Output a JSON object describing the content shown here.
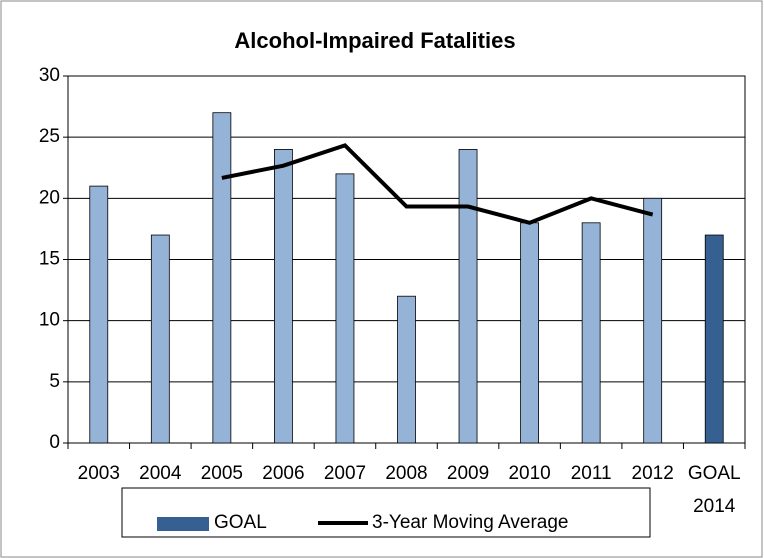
{
  "chart_data": {
    "type": "bar",
    "title": "Alcohol-Impaired Fatalities",
    "categories": [
      "2003",
      "2004",
      "2005",
      "2006",
      "2007",
      "2008",
      "2009",
      "2010",
      "2011",
      "2012",
      "GOAL 2014"
    ],
    "series": [
      {
        "color": "#95b3d7",
        "values": [
          21,
          17,
          27,
          24,
          22,
          12,
          24,
          18,
          18,
          20,
          null
        ]
      },
      {
        "name": "GOAL",
        "color": "#376092",
        "values": [
          null,
          null,
          null,
          null,
          null,
          null,
          null,
          null,
          null,
          null,
          17
        ]
      },
      {
        "name": "3-Year Moving Average",
        "type": "line",
        "color": "#000000",
        "values": [
          null,
          null,
          21.67,
          22.67,
          24.33,
          19.33,
          19.33,
          18,
          20,
          18.67,
          null
        ]
      }
    ],
    "ylim": [
      0,
      30
    ],
    "yticks": [
      0,
      5,
      10,
      15,
      20,
      25,
      30
    ],
    "grid": true,
    "legend": "bottom"
  }
}
